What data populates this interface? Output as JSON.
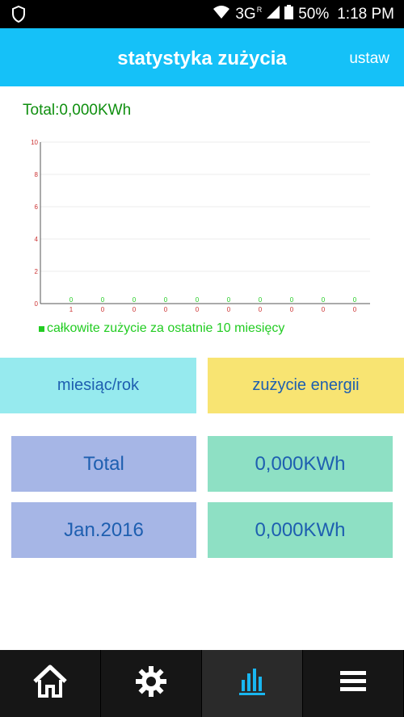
{
  "status_bar": {
    "network": "3G",
    "network_superscript": "R",
    "battery_percent": "50%",
    "time": "1:18 PM",
    "icons": [
      "shield-icon",
      "wifi-icon",
      "signal-icon",
      "battery-icon"
    ]
  },
  "app_bar": {
    "title": "statystyka zużycia",
    "settings_label": "ustaw",
    "color": "#15c1f8"
  },
  "total_text": "Total:0,000KWh",
  "chart_data": {
    "type": "bar",
    "categories": [
      "1",
      "0",
      "0",
      "0",
      "0",
      "0",
      "0",
      "0",
      "0",
      "0"
    ],
    "values": [
      0,
      0,
      0,
      0,
      0,
      0,
      0,
      0,
      0,
      0
    ],
    "value_labels": [
      "0",
      "0",
      "0",
      "0",
      "0",
      "0",
      "0",
      "0",
      "0",
      "0"
    ],
    "y_ticks": [
      "0",
      "2",
      "4",
      "6",
      "8",
      "10"
    ],
    "ylim": [
      0,
      10
    ],
    "grid": true,
    "legend": "całkowite zużycie za ostatnie 10 miesięcy",
    "legend_placement": "bottom-left",
    "series_color": "#22cc22",
    "axis_label_color": "#cc3333"
  },
  "table": {
    "headers": {
      "month": "miesiąc/rok",
      "energy": "zużycie energii"
    },
    "rows": [
      {
        "label": "Total",
        "value": "0,000KWh"
      },
      {
        "label": "Jan.2016",
        "value": "0,000KWh"
      }
    ]
  },
  "bottom_nav": {
    "items": [
      {
        "icon": "home-icon",
        "active": false
      },
      {
        "icon": "gear-icon",
        "active": false
      },
      {
        "icon": "bar-chart-icon",
        "active": true
      },
      {
        "icon": "menu-icon",
        "active": false
      }
    ]
  }
}
